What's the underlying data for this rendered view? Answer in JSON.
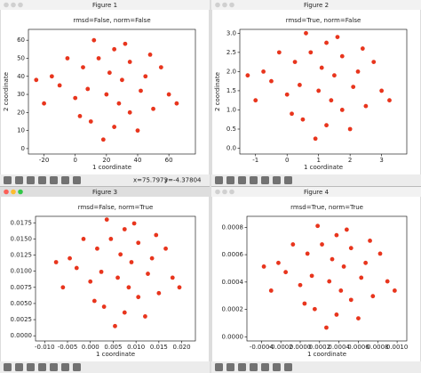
{
  "windows": [
    {
      "title": "Figure 1",
      "pointer_x": "x=75.7973",
      "pointer_y": "y=-4.37804"
    },
    {
      "title": "Figure 2"
    },
    {
      "title": "Figure 3"
    },
    {
      "title": "Figure 4"
    }
  ],
  "chart_data": [
    {
      "type": "scatter",
      "title": "rmsd=False, norm=False",
      "x_label": "1 coordinate",
      "y_label": "2 coordinate",
      "color": "#e8351d",
      "xlim": [
        -30,
        77
      ],
      "ylim": [
        -3,
        66
      ],
      "xticks": [
        -20,
        0,
        20,
        40,
        60
      ],
      "yticks": [
        0,
        10,
        20,
        30,
        40,
        50,
        60
      ],
      "x": [
        20,
        5,
        35,
        -10,
        25,
        45,
        10,
        30,
        -20,
        60,
        15,
        40,
        0,
        50,
        22,
        8,
        -5,
        35,
        18,
        55,
        28,
        12,
        42,
        -15,
        3,
        65,
        32,
        25,
        48,
        -25
      ],
      "y": [
        30,
        45,
        20,
        35,
        55,
        40,
        15,
        38,
        25,
        30,
        50,
        10,
        28,
        22,
        42,
        33,
        50,
        48,
        5,
        45,
        25,
        60,
        32,
        40,
        18,
        25,
        58,
        12,
        52,
        38
      ]
    },
    {
      "type": "scatter",
      "title": "rmsd=True, norm=False",
      "x_label": "1 coordinate",
      "y_label": "2 coordinate",
      "color": "#e8351d",
      "xlim": [
        -1.5,
        3.8
      ],
      "ylim": [
        -0.15,
        3.1
      ],
      "xticks": [
        -1,
        0,
        1,
        2,
        3
      ],
      "yticks": [
        {
          "value": 0,
          "label": "0.0"
        },
        0.5,
        {
          "value": 1,
          "label": "1.0"
        },
        1.5,
        {
          "value": 2,
          "label": "2.0"
        },
        2.5,
        {
          "value": 3,
          "label": "3.0"
        }
      ],
      "x": [
        1,
        0.25,
        1.75,
        -0.5,
        1.25,
        2.25,
        0.5,
        1.5,
        -1,
        3,
        0.75,
        2,
        0,
        2.5,
        1.1,
        0.4,
        -0.25,
        1.75,
        0.9,
        2.75,
        1.4,
        0.6,
        2.1,
        -0.75,
        0.15,
        3.25,
        1.6,
        1.25,
        2.4,
        -1.25
      ],
      "y": [
        1.5,
        2.25,
        1,
        1.75,
        2.75,
        2,
        0.75,
        1.9,
        1.25,
        1.5,
        2.5,
        0.5,
        1.4,
        1.1,
        2.1,
        1.65,
        2.5,
        2.4,
        0.25,
        2.25,
        1.25,
        3,
        1.6,
        2,
        0.9,
        1.25,
        2.9,
        0.6,
        2.6,
        1.9
      ]
    },
    {
      "type": "scatter",
      "title": "rmsd=False, norm=True",
      "x_label": "1 coordinate",
      "color": "#e8351d",
      "xlim": [
        -0.012,
        0.023
      ],
      "ylim": [
        -0.0008,
        0.0185
      ],
      "xticks": [
        {
          "value": -0.01,
          "label": "-0.010"
        },
        -0.005,
        {
          "value": 0,
          "label": "0.000"
        },
        0.005,
        {
          "value": 0.01,
          "label": "0.010"
        },
        0.015,
        {
          "value": 0.02,
          "label": "0.020"
        }
      ],
      "yticks": [
        {
          "value": 0,
          "label": "0.0000"
        },
        0.0025,
        {
          "value": 0.005,
          "label": "0.0050"
        },
        0.0075,
        {
          "value": 0.01,
          "label": "0.0100"
        },
        0.0125,
        {
          "value": 0.015,
          "label": "0.0150"
        },
        0.0175
      ],
      "x": [
        0.006,
        0.0015,
        0.0105,
        -0.003,
        0.0075,
        0.0135,
        0.003,
        0.009,
        -0.006,
        0.018,
        0.0045,
        0.012,
        0,
        0.015,
        0.0066,
        0.0024,
        -0.0015,
        0.0105,
        0.0054,
        0.0165,
        0.0084,
        0.0036,
        0.0126,
        -0.0045,
        0.0009,
        0.0195,
        0.0096,
        0.0075,
        0.0144,
        -0.0075
      ],
      "y": [
        0.009,
        0.0135,
        0.006,
        0.0105,
        0.0165,
        0.012,
        0.0045,
        0.0114,
        0.0075,
        0.009,
        0.015,
        0.003,
        0.0084,
        0.0066,
        0.0126,
        0.0099,
        0.015,
        0.0144,
        0.0015,
        0.0135,
        0.0075,
        0.018,
        0.0096,
        0.012,
        0.0054,
        0.0075,
        0.0174,
        0.0036,
        0.0156,
        0.0114
      ]
    },
    {
      "type": "scatter",
      "title": "rmsd=True, norm=True",
      "x_label": "1 coordinate",
      "color": "#e8351d",
      "xlim": [
        -0.00055,
        0.0011
      ],
      "ylim": [
        -3e-05,
        0.00088
      ],
      "xticks": [
        -0.0004,
        -0.0002,
        {
          "value": 0,
          "label": "0.0000"
        },
        0.0002,
        0.0004,
        0.0006,
        0.0008,
        {
          "value": 0.001,
          "label": "0.0010"
        }
      ],
      "yticks": [
        {
          "value": 0,
          "label": "0.0000"
        },
        0.0002,
        0.0004,
        0.0006,
        0.0008
      ],
      "x": [
        0.0003,
        7.5e-05,
        0.000525,
        -0.00015,
        0.000375,
        0.000675,
        0.00015,
        0.00045,
        -0.0003,
        0.0009,
        0.000225,
        0.0006,
        0,
        0.00075,
        0.00033,
        0.00012,
        -7.5e-05,
        0.000525,
        0.00027,
        0.000825,
        0.00042,
        0.00018,
        0.00063,
        -0.000225,
        4.5e-05,
        0.000975,
        0.00048,
        0.000375,
        0.00072,
        -0.000375
      ],
      "y": [
        0.000405,
        0.0006075,
        0.00027,
        0.0004725,
        0.0007425,
        0.00054,
        0.0002025,
        0.000513,
        0.0003375,
        0.000405,
        0.000675,
        0.000135,
        0.000378,
        0.000297,
        0.000567,
        0.0004455,
        0.000675,
        0.000648,
        6.75e-05,
        0.0006075,
        0.0003375,
        0.00081,
        0.000432,
        0.00054,
        0.000243,
        0.0003375,
        0.000783,
        0.000162,
        0.000702,
        0.000513
      ]
    }
  ]
}
